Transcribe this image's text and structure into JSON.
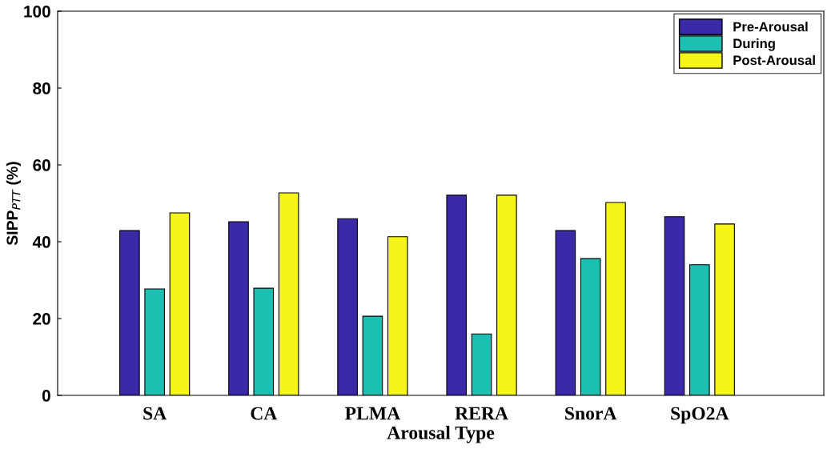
{
  "chart_data": {
    "type": "bar",
    "xlabel": "Arousal Type",
    "ylabel": "SIPP$_{PTT}$ (%)",
    "categories": [
      "SA",
      "CA",
      "PLMA",
      "RERA",
      "SnorA",
      "SpO2A"
    ],
    "series": [
      {
        "name": "Pre-Arousal",
        "color": "#3b2aa8",
        "values": [
          42.9,
          45.2,
          46.0,
          52.1,
          42.9,
          46.5
        ]
      },
      {
        "name": "During",
        "color": "#1dbfb2",
        "values": [
          27.7,
          27.9,
          20.6,
          16.0,
          35.6,
          34.0
        ]
      },
      {
        "name": "Post-Arousal",
        "color": "#f5f51a",
        "values": [
          47.5,
          52.7,
          41.3,
          52.1,
          50.2,
          44.6
        ]
      }
    ],
    "ylim": [
      0,
      100
    ],
    "yticks": [
      0,
      20,
      40,
      60,
      80,
      100
    ],
    "grid": false,
    "legend": "top right"
  }
}
